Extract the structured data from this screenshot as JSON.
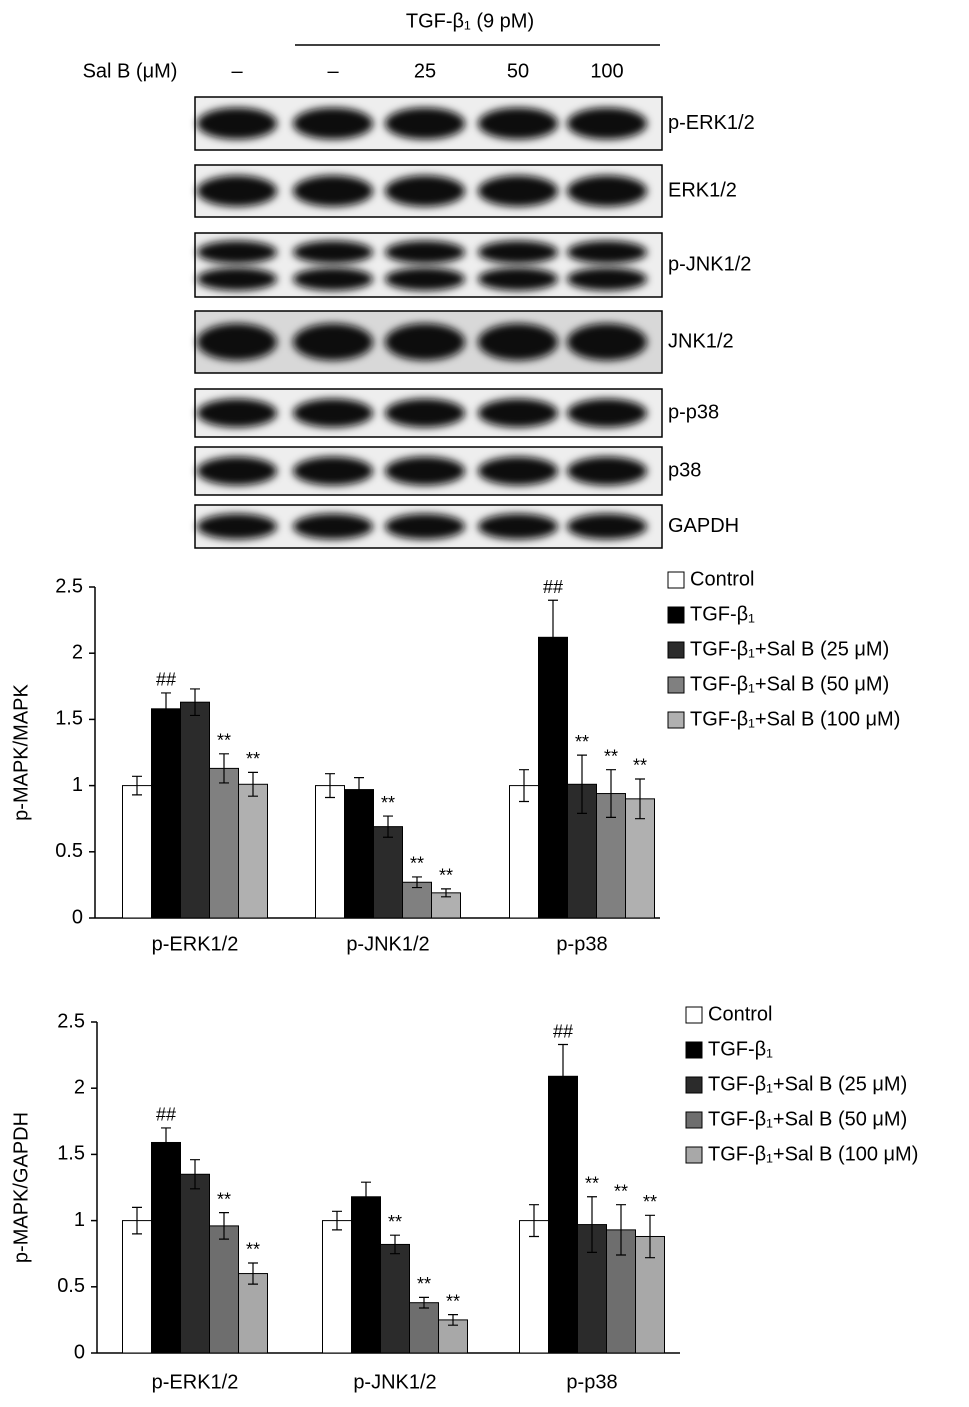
{
  "blot": {
    "treatment": "TGF-β₁ (9 pM)",
    "dose_label": "Sal B (μM)",
    "lanes": [
      "–",
      "–",
      "25",
      "50",
      "100"
    ],
    "bands": [
      "p-ERK1/2",
      "ERK1/2",
      "p-JNK1/2",
      "JNK1/2",
      "p-p38",
      "p38",
      "GAPDH"
    ]
  },
  "chart_data": [
    {
      "type": "bar",
      "ylabel": "p-MAPK/MAPK",
      "categories": [
        "p-ERK1/2",
        "p-JNK1/2",
        "p-p38"
      ],
      "ylim": [
        0,
        2.5
      ],
      "yticks": [
        0,
        0.5,
        1,
        1.5,
        2,
        2.5
      ],
      "series": [
        {
          "name": "Control",
          "color": "#ffffff",
          "values": [
            1.0,
            1.0,
            1.0
          ],
          "errors": [
            0.07,
            0.09,
            0.12
          ],
          "significance": [
            null,
            null,
            null
          ]
        },
        {
          "name": "TGF-β₁",
          "color": "#000000",
          "values": [
            1.58,
            0.97,
            2.12
          ],
          "errors": [
            0.12,
            0.09,
            0.28
          ],
          "significance": [
            "##",
            null,
            "##"
          ]
        },
        {
          "name": "TGF-β₁+Sal B (25 μM)",
          "color": "#2b2b2b",
          "values": [
            1.63,
            0.69,
            1.01
          ],
          "errors": [
            0.1,
            0.08,
            0.22
          ],
          "significance": [
            null,
            "**",
            "**"
          ]
        },
        {
          "name": "TGF-β₁+Sal B (50 μM)",
          "color": "#808080",
          "values": [
            1.13,
            0.27,
            0.94
          ],
          "errors": [
            0.11,
            0.04,
            0.18
          ],
          "significance": [
            "**",
            "**",
            "**"
          ]
        },
        {
          "name": "TGF-β₁+Sal B (100 μM)",
          "color": "#b0b0b0",
          "values": [
            1.01,
            0.19,
            0.9
          ],
          "errors": [
            0.09,
            0.03,
            0.15
          ],
          "significance": [
            "**",
            "**",
            "**"
          ]
        }
      ]
    },
    {
      "type": "bar",
      "ylabel": "p-MAPK/GAPDH",
      "categories": [
        "p-ERK1/2",
        "p-JNK1/2",
        "p-p38"
      ],
      "ylim": [
        0,
        2.5
      ],
      "yticks": [
        0,
        0.5,
        1,
        1.5,
        2,
        2.5
      ],
      "series": [
        {
          "name": "Control",
          "color": "#ffffff",
          "values": [
            1.0,
            1.0,
            1.0
          ],
          "errors": [
            0.1,
            0.07,
            0.12
          ],
          "significance": [
            null,
            null,
            null
          ]
        },
        {
          "name": "TGF-β₁",
          "color": "#000000",
          "values": [
            1.59,
            1.18,
            2.09
          ],
          "errors": [
            0.11,
            0.11,
            0.24
          ],
          "significance": [
            "##",
            null,
            "##"
          ]
        },
        {
          "name": "TGF-β₁+Sal B (25 μM)",
          "color": "#2b2b2b",
          "values": [
            1.35,
            0.82,
            0.97
          ],
          "errors": [
            0.11,
            0.07,
            0.21
          ],
          "significance": [
            null,
            "**",
            "**"
          ]
        },
        {
          "name": "TGF-β₁+Sal B (50 μM)",
          "color": "#6e6e6e",
          "values": [
            0.96,
            0.38,
            0.93
          ],
          "errors": [
            0.1,
            0.04,
            0.19
          ],
          "significance": [
            "**",
            "**",
            "**"
          ]
        },
        {
          "name": "TGF-β₁+Sal B (100 μM)",
          "color": "#a8a8a8",
          "values": [
            0.6,
            0.25,
            0.88
          ],
          "errors": [
            0.08,
            0.04,
            0.16
          ],
          "significance": [
            "**",
            "**",
            "**"
          ]
        }
      ]
    }
  ]
}
